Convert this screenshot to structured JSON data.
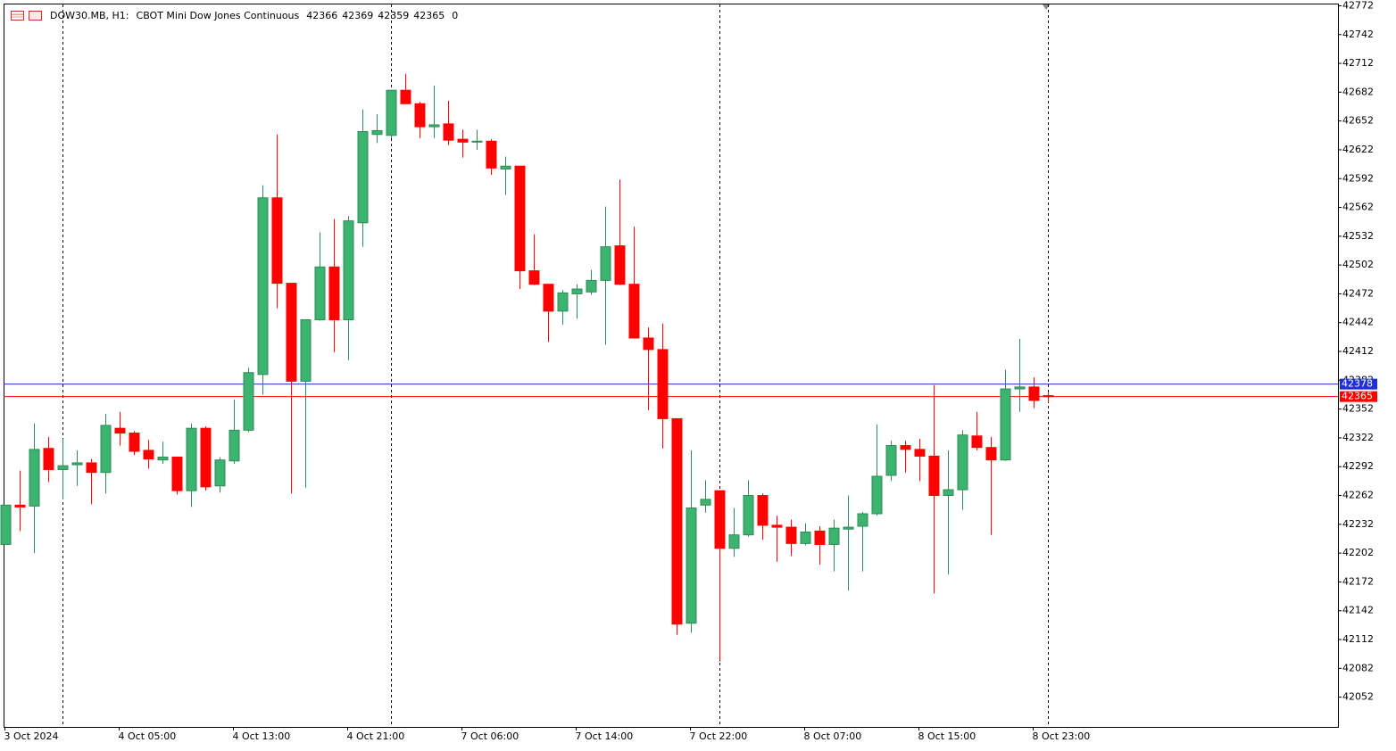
{
  "chart_data": {
    "type": "candlestick",
    "title": "DOW30.MB, H1:",
    "description": "CBOT Mini Dow Jones Continuous",
    "volume": 0,
    "categories": [
      "3 Oct 2024",
      null,
      null,
      null,
      null,
      null,
      null,
      null,
      "4 Oct 05:00",
      null,
      null,
      null,
      null,
      null,
      null,
      null,
      "4 Oct 13:00",
      null,
      null,
      null,
      null,
      null,
      null,
      null,
      "4 Oct 21:00",
      null,
      null,
      null,
      null,
      null,
      null,
      null,
      "7 Oct 06:00",
      null,
      null,
      null,
      null,
      null,
      null,
      null,
      "7 Oct 14:00",
      null,
      null,
      null,
      null,
      null,
      null,
      null,
      "7 Oct 22:00",
      null,
      null,
      null,
      null,
      null,
      null,
      null,
      "8 Oct 07:00",
      null,
      null,
      null,
      null,
      null,
      null,
      null,
      "8 Oct 15:00",
      null,
      null,
      null,
      null,
      null,
      null,
      null,
      "8 Oct 23:00",
      null
    ],
    "open": [
      42211,
      42252,
      42251,
      42311,
      42289,
      42294,
      42296,
      42286,
      42332,
      42327,
      42309,
      42299,
      42302,
      42267,
      42332,
      42272,
      42298,
      42330,
      42388,
      42572,
      42483,
      42381,
      42445,
      42500,
      42445,
      42546,
      42638,
      42637,
      42684,
      42670,
      42646,
      42649,
      42633,
      42630,
      42631,
      42602,
      42605,
      42496,
      42482,
      42454,
      42472,
      42474,
      42486,
      42522,
      42482,
      42426,
      42414,
      42342,
      42129,
      42252,
      42267,
      42207,
      42221,
      42262,
      42231,
      42229,
      42212,
      42225,
      42211,
      42227,
      42230,
      42243,
      42283,
      42314,
      42310,
      42303,
      42262,
      42268,
      42324,
      42312,
      42299,
      42373,
      42375,
      42366
    ],
    "high": [
      42252,
      42288,
      42337,
      42323,
      42321,
      42309,
      42300,
      42347,
      42349,
      42329,
      42320,
      42318,
      42302,
      42337,
      42334,
      42302,
      42362,
      42395,
      42585,
      42638,
      42483,
      42445,
      42536,
      42550,
      42553,
      42664,
      42659,
      42684,
      42701,
      42672,
      42689,
      42673,
      42643,
      42643,
      42633,
      42615,
      42605,
      42534,
      42482,
      42476,
      42482,
      42497,
      42563,
      42591,
      42542,
      42437,
      42441,
      42342,
      42309,
      42278,
      42267,
      42249,
      42278,
      42264,
      42241,
      42237,
      42233,
      42230,
      42237,
      42262,
      42245,
      42336,
      42319,
      42319,
      42321,
      42377,
      42309,
      42330,
      42349,
      42323,
      42393,
      42425,
      42385,
      42369
    ],
    "low": [
      42211,
      42225,
      42202,
      42276,
      42258,
      42272,
      42253,
      42264,
      42314,
      42304,
      42290,
      42295,
      42263,
      42250,
      42267,
      42265,
      42295,
      42328,
      42367,
      42457,
      42264,
      42270,
      42444,
      42411,
      42403,
      42521,
      42629,
      42634,
      42670,
      42634,
      42634,
      42627,
      42614,
      42622,
      42596,
      42575,
      42477,
      42481,
      42422,
      42440,
      42446,
      42471,
      42419,
      42481,
      42426,
      42351,
      42311,
      42117,
      42119,
      42244,
      42089,
      42198,
      42219,
      42216,
      42193,
      42199,
      42210,
      42190,
      42183,
      42163,
      42183,
      42241,
      42277,
      42286,
      42277,
      42160,
      42180,
      42247,
      42309,
      42221,
      42298,
      42349,
      42353,
      42359
    ],
    "close": [
      42252,
      42250,
      42310,
      42289,
      42293,
      42296,
      42286,
      42335,
      42327,
      42308,
      42300,
      42302,
      42267,
      42332,
      42271,
      42299,
      42330,
      42390,
      42572,
      42483,
      42381,
      42445,
      42500,
      42445,
      42548,
      42641,
      42642,
      42684,
      42670,
      42646,
      42648,
      42632,
      42630,
      42631,
      42603,
      42605,
      42496,
      42482,
      42454,
      42473,
      42477,
      42486,
      42521,
      42482,
      42426,
      42414,
      42342,
      42128,
      42249,
      42258,
      42207,
      42221,
      42262,
      42231,
      42229,
      42212,
      42224,
      42211,
      42228,
      42229,
      42243,
      42282,
      42314,
      42310,
      42303,
      42262,
      42268,
      42325,
      42312,
      42299,
      42373,
      42375,
      42361,
      42365
    ],
    "up_color": "#3cb371",
    "down_color": "#ff0000",
    "ask": 42378,
    "ask_color": "#1e2ed8",
    "bid_color": "#ff0000",
    "period_separators": [
      4,
      27,
      50,
      73
    ],
    "ylim": [
      42021,
      42778
    ],
    "yticks": [
      42052,
      42082,
      42112,
      42142,
      42172,
      42202,
      42232,
      42262,
      42292,
      42322,
      42352,
      42382,
      42412,
      42442,
      42472,
      42502,
      42532,
      42562,
      42592,
      42622,
      42652,
      42682,
      42712,
      42742,
      42772
    ],
    "grid": false
  }
}
